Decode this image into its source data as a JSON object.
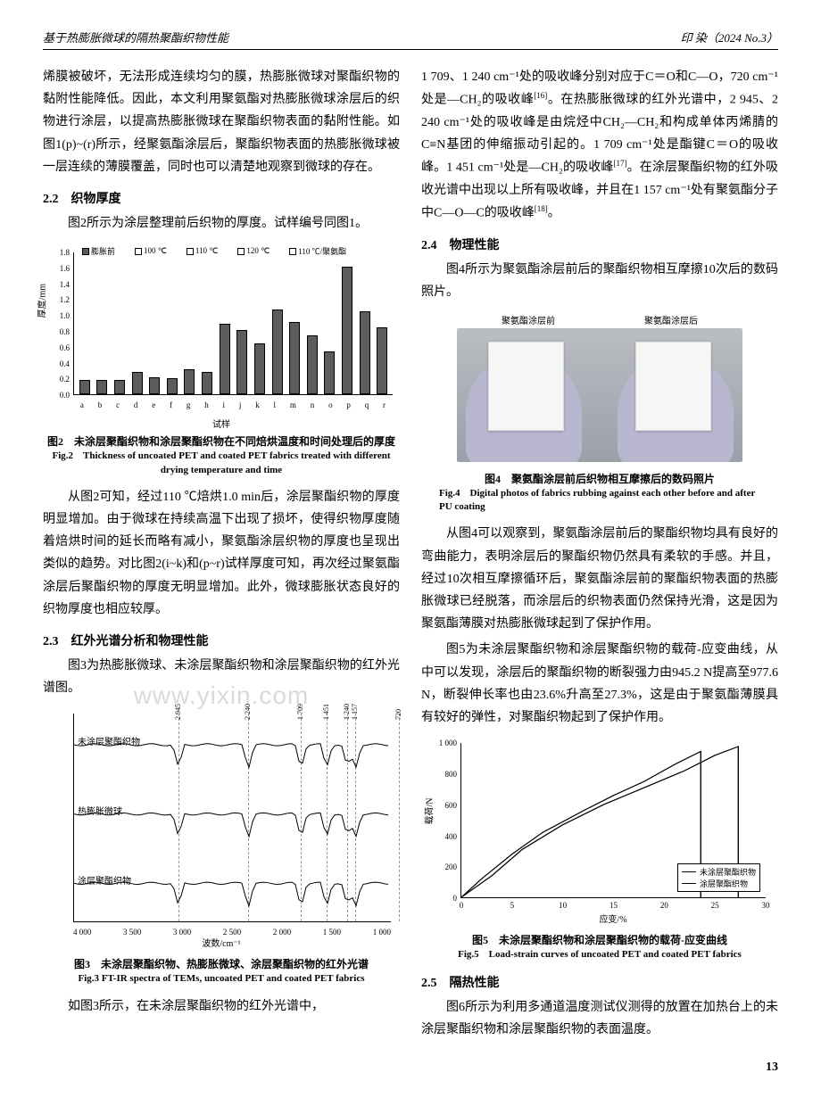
{
  "header": {
    "left": "基于热膨胀微球的隔热聚酯织物性能",
    "right": "印 染（2024 No.3）"
  },
  "page_number": "13",
  "watermark": "www.yixin.com",
  "left_col": {
    "p1": "烯膜被破坏，无法形成连续均匀的膜，热膨胀微球对聚酯织物的黏附性能降低。因此，本文利用聚氨酯对热膨胀微球涂层后的织物进行涂层，以提高热膨胀微球在聚酯织物表面的黏附性能。如图1(p)~(r)所示，经聚氨酯涂层后，聚酯织物表面的热膨胀微球被一层连续的薄膜覆盖，同时也可以清楚地观察到微球的存在。",
    "s22": "2.2　织物厚度",
    "p2": "图2所示为涂层整理前后织物的厚度。试样编号同图1。",
    "fig2_cn": "图2　未涂层聚酯织物和涂层聚酯织物在不同焙烘温度和时间处理后的厚度",
    "fig2_en": "Fig.2　Thickness of uncoated PET and coated PET fabrics treated with different drying temperature and time",
    "p3": "从图2可知，经过110 ℃焙烘1.0 min后，涂层聚酯织物的厚度明显增加。由于微球在持续高温下出现了损坏，使得织物厚度随着焙烘时间的延长而略有减小，聚氨酯涂层织物的厚度也呈现出类似的趋势。对比图2(i~k)和(p~r)试样厚度可知，再次经过聚氨酯涂层后聚酯织物的厚度无明显增加。此外，微球膨胀状态良好的织物厚度也相应较厚。",
    "s23": "2.3　红外光谱分析和物理性能",
    "p4": "图3为热膨胀微球、未涂层聚酯织物和涂层聚酯织物的红外光谱图。",
    "fig3_cn": "图3　未涂层聚酯织物、热膨胀微球、涂层聚酯织物的红外光谱",
    "fig3_en": "Fig.3 FT-IR spectra of TEMs, uncoated PET and coated PET fabrics",
    "p5": "如图3所示，在未涂层聚酯织物的红外光谱中，"
  },
  "right_col": {
    "p1_a": "1 709、1 240 cm⁻¹处的吸收峰分别对应于C＝O和C—O，720 cm⁻¹处是—CH₂的吸收峰",
    "p1_ref1": "[16]",
    "p1_b": "。在热膨胀微球的红外光谱中，2 945、2 240 cm⁻¹处的吸收峰是由烷烃中CH₂—CH₂和构成单体丙烯腈的C≡N基团的伸缩振动引起的。1 709 cm⁻¹处是酯键C＝O的吸收峰。1 451 cm⁻¹处是—CH₂的吸收峰",
    "p1_ref2": "[17]",
    "p1_c": "。在涂层聚酯织物的红外吸收光谱中出现以上所有吸收峰，并且在1 157 cm⁻¹处有聚氨酯分子中C—O—C的吸收峰",
    "p1_ref3": "[18]",
    "p1_d": "。",
    "s24": "2.4　物理性能",
    "p2": "图4所示为聚氨酯涂层前后的聚酯织物相互摩擦10次后的数码照片。",
    "photo_label_before": "聚氨酯涂层前",
    "photo_label_after": "聚氨酯涂层后",
    "fig4_cn": "图4　聚氨酯涂层前后织物相互摩擦后的数码照片",
    "fig4_en": "Fig.4　Digital photos of fabrics rubbing against each other before and after PU coating",
    "p3": "从图4可以观察到，聚氨酯涂层前后的聚酯织物均具有良好的弯曲能力，表明涂层后的聚酯织物仍然具有柔软的手感。并且，经过10次相互摩擦循环后，聚氨酯涂层前的聚酯织物表面的热膨胀微球已经脱落，而涂层后的织物表面仍然保持光滑，这是因为聚氨酯薄膜对热膨胀微球起到了保护作用。",
    "p4": "图5为未涂层聚酯织物和涂层聚酯织物的载荷-应变曲线，从中可以发现，涂层后的聚酯织物的断裂强力由945.2 N提高至977.6 N，断裂伸长率也由23.6%升高至27.3%，这是由于聚氨酯薄膜具有较好的弹性，对聚酯织物起到了保护作用。",
    "fig5_cn": "图5　未涂层聚酯织物和涂层聚酯织物的载荷-应变曲线",
    "fig5_en": "Fig.5　Load-strain curves of uncoated PET and coated PET fabrics",
    "s25": "2.5　隔热性能",
    "p5": "图6所示为利用多通道温度测试仪测得的放置在加热台上的未涂层聚酯织物和涂层聚酯织物的表面温度。"
  },
  "fig2": {
    "type": "bar",
    "ylabel": "厚度/mm",
    "xlabel": "试样",
    "ylim": [
      0,
      1.8
    ],
    "ytick_step": 0.2,
    "categories": [
      "a",
      "b",
      "c",
      "d",
      "e",
      "f",
      "g",
      "h",
      "i",
      "j",
      "k",
      "l",
      "m",
      "n",
      "o",
      "p",
      "q",
      "r"
    ],
    "values": [
      0.18,
      0.18,
      0.18,
      0.28,
      0.22,
      0.2,
      0.32,
      0.28,
      0.9,
      0.82,
      0.65,
      1.08,
      0.92,
      0.75,
      0.55,
      1.62,
      1.05,
      0.85
    ],
    "bar_color": "#5c5c5c",
    "outline": "#000",
    "background_color": "#ffffff",
    "legend": [
      {
        "label": "膨胀前",
        "swatch": "#5c5c5c"
      },
      {
        "label": "100 ℃",
        "swatch": "transparent"
      },
      {
        "label": "110 ℃",
        "swatch": "transparent"
      },
      {
        "label": "120 ℃",
        "swatch": "transparent"
      },
      {
        "label": "110 ℃/聚氨酯",
        "swatch": "transparent"
      }
    ]
  },
  "fig3": {
    "type": "line-stacked",
    "xlabel": "波数/cm⁻¹",
    "xticks": [
      "4 000",
      "3 500",
      "3 000",
      "2 500",
      "2 000",
      "1 500",
      "1 000"
    ],
    "xrange": [
      4000,
      800
    ],
    "peaks": [
      2945,
      2240,
      1709,
      1451,
      1240,
      1157,
      720
    ],
    "peak_labels": [
      "2 945",
      "2 240",
      "1 709",
      "1 451",
      "1 240",
      "1 157",
      "720"
    ],
    "traces": [
      {
        "label": "未涂层聚酯织物",
        "color": "#000"
      },
      {
        "label": "热膨胀微球",
        "color": "#000"
      },
      {
        "label": "涂层聚酯织物",
        "color": "#000"
      }
    ],
    "dash_color": "#999999"
  },
  "fig5": {
    "type": "line",
    "xlabel": "应变/%",
    "ylabel": "载荷/N",
    "xlim": [
      0,
      30
    ],
    "xtick_step": 5,
    "ylim": [
      0,
      1000
    ],
    "ytick_step": 200,
    "series": [
      {
        "label": "未涂层聚酯织物",
        "color": "#000",
        "style": "solid",
        "points": [
          [
            0,
            0
          ],
          [
            2,
            120
          ],
          [
            5,
            280
          ],
          [
            8,
            420
          ],
          [
            12,
            560
          ],
          [
            15,
            660
          ],
          [
            18,
            750
          ],
          [
            21,
            860
          ],
          [
            23.6,
            945
          ],
          [
            23.6,
            0
          ]
        ]
      },
      {
        "label": "涂层聚酯织物",
        "color": "#000",
        "style": "solid",
        "points": [
          [
            0,
            0
          ],
          [
            3,
            140
          ],
          [
            6,
            310
          ],
          [
            10,
            470
          ],
          [
            14,
            600
          ],
          [
            18,
            710
          ],
          [
            22,
            820
          ],
          [
            25,
            920
          ],
          [
            27.3,
            977
          ],
          [
            27.3,
            0
          ]
        ]
      }
    ],
    "grid_color": "#e0e0e0",
    "background_color": "#ffffff"
  },
  "fig4_photo": {
    "glove_color": "#b9b6cf",
    "fabric_color": "#f6f6f4",
    "bg_gradient": [
      "#babec3",
      "#9aa0a8"
    ]
  }
}
